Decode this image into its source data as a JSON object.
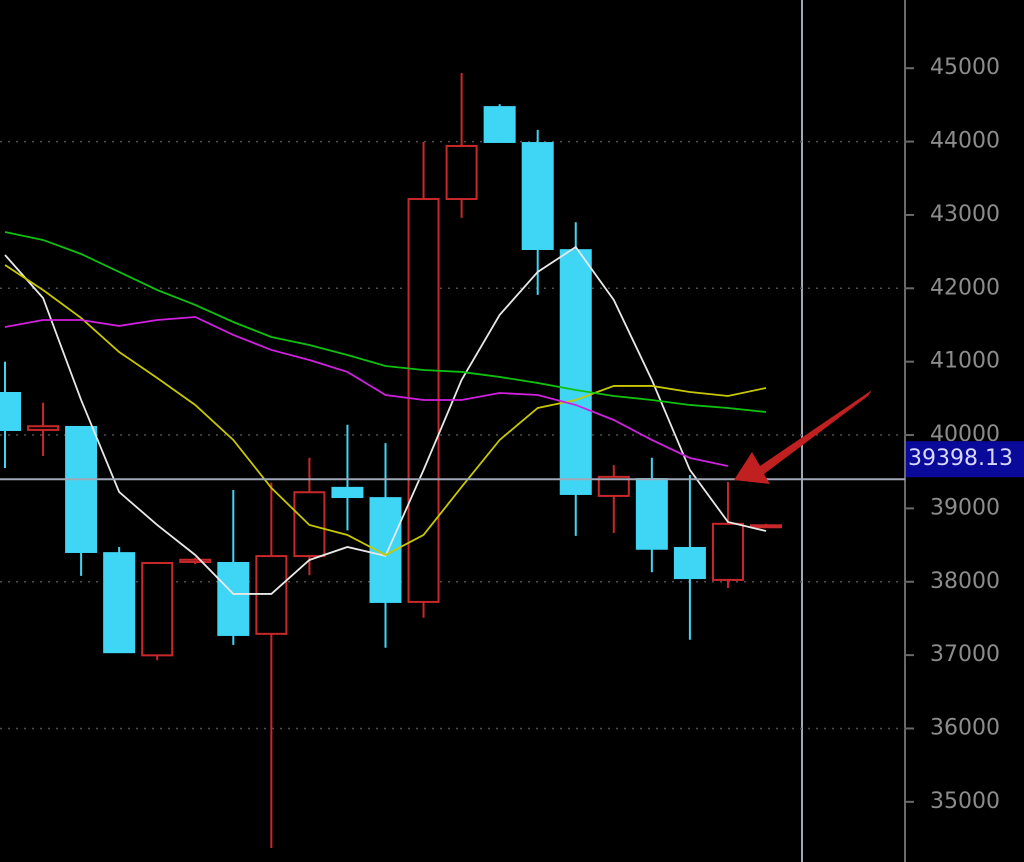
{
  "chart_data": {
    "type": "candlestick",
    "open": [
      40573,
      40070,
      40110,
      38390,
      36997,
      38270,
      38256,
      37290,
      38350,
      39280,
      39140,
      37725,
      43217,
      44470,
      43980,
      42520,
      39170,
      39400,
      38460,
      38025,
      38760
    ],
    "high": [
      41000,
      40440,
      40110,
      38474,
      38256,
      38330,
      39250,
      39350,
      39690,
      40140,
      39890,
      43995,
      44935,
      44510,
      44160,
      42900,
      39590,
      39690,
      39455,
      39360,
      38790
    ],
    "low": [
      39550,
      39715,
      38080,
      37040,
      36930,
      38240,
      37140,
      34370,
      38090,
      38700,
      37100,
      37510,
      42960,
      43995,
      41910,
      38625,
      38665,
      38130,
      37210,
      37915,
      38750
    ],
    "close": [
      40069,
      40120,
      38406,
      37040,
      38256,
      38300,
      37275,
      38350,
      39220,
      39155,
      37725,
      43217,
      43940,
      43995,
      42536,
      39197,
      39430,
      38450,
      38050,
      38790,
      38770
    ],
    "up_color": "#c8282a",
    "down_color": "#3fd6f6",
    "moving_averages": [
      {
        "color": "#e8e8e8",
        "values": [
          42454,
          41868,
          40478,
          39224,
          38774,
          38365,
          37834,
          37834,
          38297,
          38474,
          38352,
          39524,
          40751,
          41637,
          42223,
          42563,
          41841,
          40751,
          39524,
          38815,
          38692
        ]
      },
      {
        "color": "#c8c800",
        "values": [
          42318,
          41977,
          41596,
          41132,
          40778,
          40410,
          39933,
          39279,
          38774,
          38638,
          38365,
          38638,
          39292,
          39933,
          40369,
          40478,
          40669,
          40669,
          40587,
          40532,
          40641
        ]
      },
      {
        "color": "#d020e0",
        "values": [
          41473,
          41568,
          41568,
          41487,
          41568,
          41609,
          41364,
          41160,
          41023,
          40860,
          40546,
          40478,
          40478,
          40573,
          40546,
          40410,
          40205,
          39933,
          39687,
          39578,
          null
        ]
      },
      {
        "color": "#10c010",
        "values": [
          42768,
          42659,
          42468,
          42223,
          41977,
          41773,
          41541,
          41337,
          41228,
          41091,
          40941,
          40887,
          40860,
          40792,
          40710,
          40614,
          40532,
          40478,
          40410,
          40369,
          40314
        ]
      }
    ],
    "last_price": 39398.13,
    "ylim": [
      34180,
      45930
    ],
    "yticks": [
      35000,
      36000,
      37000,
      38000,
      39000,
      40000,
      41000,
      42000,
      43000,
      44000,
      45000
    ],
    "grid": true
  }
}
